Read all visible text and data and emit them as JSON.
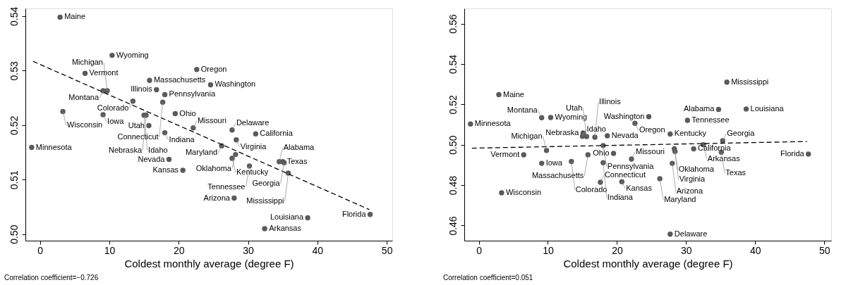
{
  "chart_data": [
    {
      "type": "scatter",
      "xlabel": "Coldest monthly average (degree F)",
      "xlim": [
        -2.1,
        50.8
      ],
      "ylim": [
        0.4988,
        0.5414
      ],
      "xticks": [
        0,
        10,
        20,
        30,
        40,
        50
      ],
      "yticks": [
        {
          "value": 0.5,
          "label": "0.50"
        },
        0.51,
        {
          "value": 0.52,
          "label": "0.52"
        },
        0.53,
        {
          "value": 0.54,
          "label": "0.54"
        }
      ],
      "grid": false,
      "marker": "circle",
      "series": [
        {
          "color": "#5a5a5a",
          "x": [
            2.9,
            10.4,
            6.5,
            15.8,
            22.6,
            24.6,
            16.8,
            9.1,
            9.7,
            18.0,
            13.4,
            17.7,
            3.3,
            9.1,
            15.0,
            15.3,
            19.5,
            15.7,
            18.0,
            22.1,
            27.7,
            31.1,
            28.3,
            26.2,
            -1.2,
            28.2,
            18.6,
            27.7,
            35.0,
            34.5,
            35.2,
            30.2,
            20.6,
            35.8,
            28.0,
            47.6,
            38.6,
            32.4
          ],
          "values": [
            0.5398,
            0.5328,
            0.5295,
            0.5282,
            0.5302,
            0.5274,
            0.5265,
            0.5263,
            0.5263,
            0.5256,
            0.5244,
            0.5242,
            0.5225,
            0.5219,
            0.5218,
            0.5218,
            0.5221,
            0.5199,
            0.5186,
            0.5195,
            0.5191,
            0.5184,
            0.5173,
            0.5162,
            0.5159,
            0.5146,
            0.5137,
            0.5139,
            0.5133,
            0.5133,
            0.5131,
            0.5125,
            0.5117,
            0.5112,
            0.5066,
            0.5036,
            0.503,
            0.501
          ]
        },
        {
          "type": "line",
          "marker": "none",
          "line_style": "dashed",
          "color": "#000000",
          "x": [
            -1,
            47.5
          ],
          "values": [
            0.5317,
            0.5045
          ]
        }
      ],
      "annotations": [
        {
          "text": "Maine",
          "x": 2.9,
          "y": 0.5398
        },
        {
          "text": "Wyoming",
          "x": 10.4,
          "y": 0.5328
        },
        {
          "text": "Vermont",
          "x": 6.5,
          "y": 0.5295
        },
        {
          "text": "Massachusetts",
          "x": 15.8,
          "y": 0.5282
        },
        {
          "text": "Oregon",
          "x": 22.6,
          "y": 0.5302
        },
        {
          "text": "Washington",
          "x": 24.6,
          "y": 0.5274
        },
        {
          "text": "Illinois",
          "x": 16.8,
          "y": 0.5265
        },
        {
          "text": "Montana",
          "x": 9.1,
          "y": 0.5263
        },
        {
          "text": "Michigan",
          "x": 9.7,
          "y": 0.5263
        },
        {
          "text": "Pennsylvania",
          "x": 18.0,
          "y": 0.5256
        },
        {
          "text": "Colorado",
          "x": 13.4,
          "y": 0.5244
        },
        {
          "text": "Connecticut",
          "x": 17.7,
          "y": 0.5242
        },
        {
          "text": "Wisconsin",
          "x": 3.3,
          "y": 0.5225
        },
        {
          "text": "Iowa",
          "x": 9.1,
          "y": 0.5219
        },
        {
          "text": "Idaho",
          "x": 15.0,
          "y": 0.5218
        },
        {
          "text": "Nebraska",
          "x": 15.3,
          "y": 0.5218
        },
        {
          "text": "Ohio",
          "x": 19.5,
          "y": 0.5221
        },
        {
          "text": "Utah",
          "x": 15.7,
          "y": 0.5199
        },
        {
          "text": "Indiana",
          "x": 18.0,
          "y": 0.5186
        },
        {
          "text": "Missouri",
          "x": 22.1,
          "y": 0.5195
        },
        {
          "text": "Delaware",
          "x": 27.7,
          "y": 0.5191
        },
        {
          "text": "California",
          "x": 31.1,
          "y": 0.5184
        },
        {
          "text": "Virginia",
          "x": 28.3,
          "y": 0.5173
        },
        {
          "text": "Maryland",
          "x": 26.2,
          "y": 0.5162
        },
        {
          "text": "Minnesota",
          "x": -1.2,
          "y": 0.5159
        },
        {
          "text": "Oklahoma",
          "x": 28.2,
          "y": 0.5146
        },
        {
          "text": "Nevada",
          "x": 18.6,
          "y": 0.5137
        },
        {
          "text": "Kentucky",
          "x": 27.7,
          "y": 0.5139
        },
        {
          "text": "Texas",
          "x": 35.0,
          "y": 0.5133
        },
        {
          "text": "Alabama",
          "x": 34.5,
          "y": 0.5133
        },
        {
          "text": "Georgia",
          "x": 35.2,
          "y": 0.5131
        },
        {
          "text": "Tennessee",
          "x": 30.2,
          "y": 0.5125
        },
        {
          "text": "Kansas",
          "x": 20.6,
          "y": 0.5117
        },
        {
          "text": "Mississippi",
          "x": 35.8,
          "y": 0.5112
        },
        {
          "text": "Arizona",
          "x": 28.0,
          "y": 0.5066
        },
        {
          "text": "Florida",
          "x": 47.6,
          "y": 0.5036
        },
        {
          "text": "Louisiana",
          "x": 38.6,
          "y": 0.503
        },
        {
          "text": "Arkansas",
          "x": 32.4,
          "y": 0.501
        },
        "Correlation coefficient=−0.726"
      ]
    },
    {
      "type": "scatter",
      "xlabel": "Coldest monthly average (degree F)",
      "xlim": [
        -2.1,
        51.0
      ],
      "ylim": [
        0.4525,
        0.5675
      ],
      "xticks": [
        0,
        10,
        20,
        30,
        40,
        50
      ],
      "yticks": [
        0.46,
        0.48,
        {
          "value": 0.5,
          "label": "0.50"
        },
        0.52,
        0.54,
        0.56
      ],
      "grid": false,
      "marker": "circle",
      "series": [
        {
          "color": "#5a5a5a",
          "x": [
            35.9,
            2.9,
            34.7,
            38.7,
            -1.2,
            9.1,
            10.4,
            24.6,
            22.6,
            30.2,
            27.7,
            15.1,
            15.0,
            15.6,
            16.8,
            18.6,
            35.3,
            18.0,
            32.5,
            9.8,
            6.5,
            15.8,
            19.5,
            22.1,
            28.3,
            28.4,
            31.1,
            35.1,
            47.7,
            9.1,
            13.4,
            18.0,
            28.0,
            17.6,
            20.7,
            26.2,
            3.3,
            27.7
          ],
          "values": [
            0.531,
            0.5248,
            0.5175,
            0.5177,
            0.5103,
            0.5134,
            0.5135,
            0.5139,
            0.5106,
            0.5121,
            0.5053,
            0.5058,
            0.5042,
            0.5041,
            0.5037,
            0.5044,
            0.502,
            0.4996,
            0.5,
            0.4972,
            0.495,
            0.495,
            0.4957,
            0.4929,
            0.498,
            0.4967,
            0.498,
            0.4963,
            0.4954,
            0.4908,
            0.4917,
            0.4911,
            0.4908,
            0.4814,
            0.4817,
            0.4832,
            0.4762,
            0.4557
          ]
        },
        {
          "type": "line",
          "marker": "none",
          "line_style": "dashed",
          "color": "#000000",
          "x": [
            -1,
            47.5
          ],
          "values": [
            0.4983,
            0.5016
          ]
        }
      ],
      "annotations": [
        {
          "text": "Mississippi",
          "x": 35.9,
          "y": 0.531
        },
        {
          "text": "Maine",
          "x": 2.9,
          "y": 0.5248
        },
        {
          "text": "Alabama",
          "x": 34.7,
          "y": 0.5175
        },
        {
          "text": "Louisiana",
          "x": 38.7,
          "y": 0.5177
        },
        {
          "text": "Minnesota",
          "x": -1.2,
          "y": 0.5103
        },
        {
          "text": "Montana",
          "x": 9.1,
          "y": 0.5134
        },
        {
          "text": "Wyoming",
          "x": 10.4,
          "y": 0.5135
        },
        {
          "text": "Washington",
          "x": 24.6,
          "y": 0.5139
        },
        {
          "text": "Oregon",
          "x": 22.6,
          "y": 0.5106
        },
        {
          "text": "Tennessee",
          "x": 30.2,
          "y": 0.5121
        },
        {
          "text": "Kentucky",
          "x": 27.7,
          "y": 0.5053
        },
        {
          "text": "Nebraska",
          "x": 15.1,
          "y": 0.5058
        },
        {
          "text": "Idaho",
          "x": 15.0,
          "y": 0.5042
        },
        {
          "text": "Utah",
          "x": 15.6,
          "y": 0.5041
        },
        {
          "text": "Illinois",
          "x": 16.8,
          "y": 0.5037
        },
        {
          "text": "Nevada",
          "x": 18.6,
          "y": 0.5044
        },
        {
          "text": "Georgia",
          "x": 35.3,
          "y": 0.502
        },
        {
          "text": "Pennsylvania",
          "x": 18.0,
          "y": 0.4996
        },
        {
          "text": "Arkansas",
          "x": 32.5,
          "y": 0.5
        },
        {
          "text": "Michigan",
          "x": 9.8,
          "y": 0.4972
        },
        {
          "text": "Vermont",
          "x": 6.5,
          "y": 0.495
        },
        {
          "text": "Massachusetts",
          "x": 15.8,
          "y": 0.495
        },
        {
          "text": "Ohio",
          "x": 19.5,
          "y": 0.4957
        },
        {
          "text": "Missouri",
          "x": 22.1,
          "y": 0.4929
        },
        {
          "text": "Oklahoma",
          "x": 28.3,
          "y": 0.498
        },
        {
          "text": "Virginia",
          "x": 28.4,
          "y": 0.4967
        },
        {
          "text": "California",
          "x": 31.1,
          "y": 0.498
        },
        {
          "text": "Texas",
          "x": 35.1,
          "y": 0.4963
        },
        {
          "text": "Florida",
          "x": 47.7,
          "y": 0.4954
        },
        {
          "text": "Iowa",
          "x": 9.1,
          "y": 0.4908
        },
        {
          "text": "Colorado",
          "x": 13.4,
          "y": 0.4917
        },
        {
          "text": "Indiana",
          "x": 18.0,
          "y": 0.4911
        },
        {
          "text": "Arizona",
          "x": 28.0,
          "y": 0.4908
        },
        {
          "text": "Connecticut",
          "x": 17.6,
          "y": 0.4814
        },
        {
          "text": "Kansas",
          "x": 20.7,
          "y": 0.4817
        },
        {
          "text": "Maryland",
          "x": 26.2,
          "y": 0.4832
        },
        {
          "text": "Wisconsin",
          "x": 3.3,
          "y": 0.4762
        },
        {
          "text": "Delaware",
          "x": 27.7,
          "y": 0.4557
        },
        "Correlation coefficient=0.051"
      ]
    }
  ]
}
